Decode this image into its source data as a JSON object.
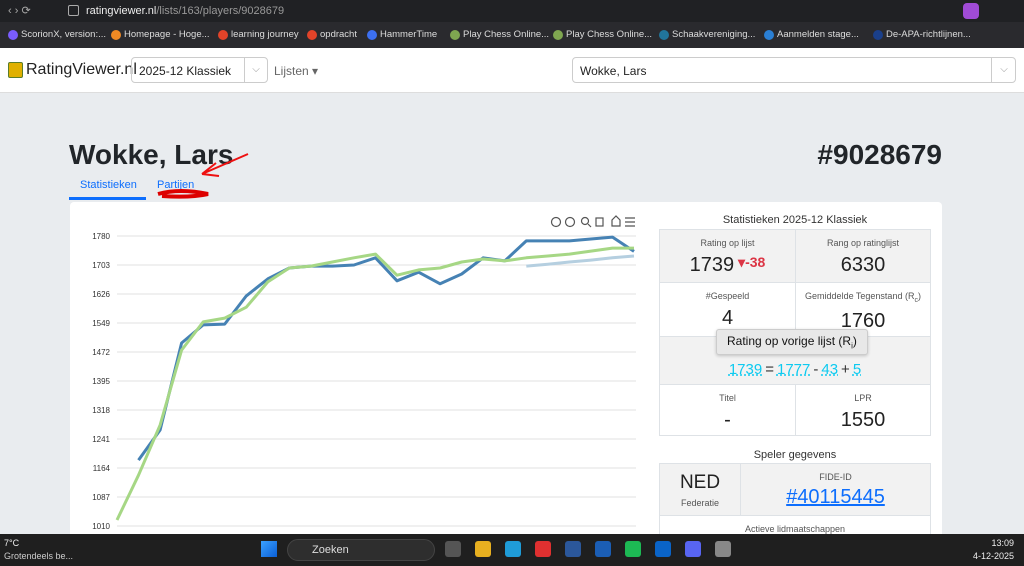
{
  "browser": {
    "url_domain": "ratingviewer.nl",
    "url_path": "/lists/163/players/9028679"
  },
  "bookmarks": [
    "ScorionX, version:...",
    "Homepage - Hoge...",
    "learning journey",
    "opdracht",
    "HammerTime",
    "Play Chess Online...",
    "Play Chess Online...",
    "Schaakvereniging...",
    "Aanmelden stage...",
    "De-APA-richtlijnen..."
  ],
  "nav": {
    "brand": "RatingViewer.nl",
    "list_select": "2025-12 Klassiek",
    "lists_menu": "Lijsten",
    "player_select": "Wokke, Lars"
  },
  "player": {
    "name": "Wokke, Lars",
    "id": "#9028679"
  },
  "tabs": [
    "Statistieken",
    "Partijen"
  ],
  "chart_data": {
    "type": "line",
    "categories": [
      null,
      null,
      null,
      null,
      null,
      null,
      null,
      null,
      null,
      null,
      null,
      null,
      null,
      null,
      null,
      null,
      null,
      null,
      null,
      null,
      null,
      null,
      null,
      null,
      null
    ],
    "series": [
      {
        "color": "#4682b4",
        "values": [
          null,
          1185,
          1265,
          1496,
          1544,
          1546,
          1621,
          1666,
          1695,
          1700,
          1700,
          1703,
          1722,
          1661,
          1684,
          1653,
          1679,
          1722,
          1714,
          1767,
          1767,
          1767,
          1772,
          1777,
          1739
        ]
      },
      {
        "color": "#a6d785",
        "values": [
          1026,
          1145,
          1278,
          1477,
          1552,
          1562,
          1591,
          1658,
          1695,
          1700,
          1711,
          1722,
          1732,
          1676,
          1690,
          1695,
          1711,
          1719,
          1714,
          1722,
          1727,
          1732,
          1740,
          1748,
          1748
        ]
      },
      {
        "color": "#b5cfe0",
        "values": [
          null,
          null,
          null,
          null,
          null,
          null,
          null,
          null,
          null,
          null,
          null,
          null,
          null,
          null,
          null,
          null,
          null,
          null,
          null,
          1700,
          1705,
          1711,
          1716,
          1722,
          1727
        ]
      }
    ],
    "ylim": [
      1010,
      1780
    ],
    "yticks": [
      1010,
      1087,
      1164,
      1241,
      1318,
      1395,
      1472,
      1549,
      1626,
      1703,
      1780
    ],
    "grid": true
  },
  "stats": {
    "title": "Statistieken 2025-12 Klassiek",
    "rating_label": "Rating op lijst",
    "rating": "1739",
    "change": "-38",
    "rank_label": "Rang op ratinglijst",
    "rank": "6330",
    "played_label": "#Gespeeld",
    "played": "4",
    "avg_label": "Gemiddelde Tegenstand (R",
    "avg_sub": "c",
    "avg_close": ")",
    "avg": "1760",
    "tooltip": "Rating op vorige lijst (R",
    "tooltip_sub": "i",
    "tooltip_close": ")",
    "formula": [
      "1739",
      "=",
      "1777",
      "-",
      "43",
      "+",
      "5"
    ],
    "title_label": "Titel",
    "title_value": "-",
    "lpr_label": "LPR",
    "lpr": "1550"
  },
  "player_info": {
    "title": "Speler gegevens",
    "federation": "NED",
    "federation_label": "Federatie",
    "fide_label": "FIDE-ID",
    "fide_id": "#40115445",
    "memberships": "Actieve lidmaatschappen"
  },
  "taskbar": {
    "temp": "7°C",
    "weather": "Grotendeels be...",
    "search": "Zoeken",
    "time": "13:09",
    "date": "4-12-2025"
  }
}
